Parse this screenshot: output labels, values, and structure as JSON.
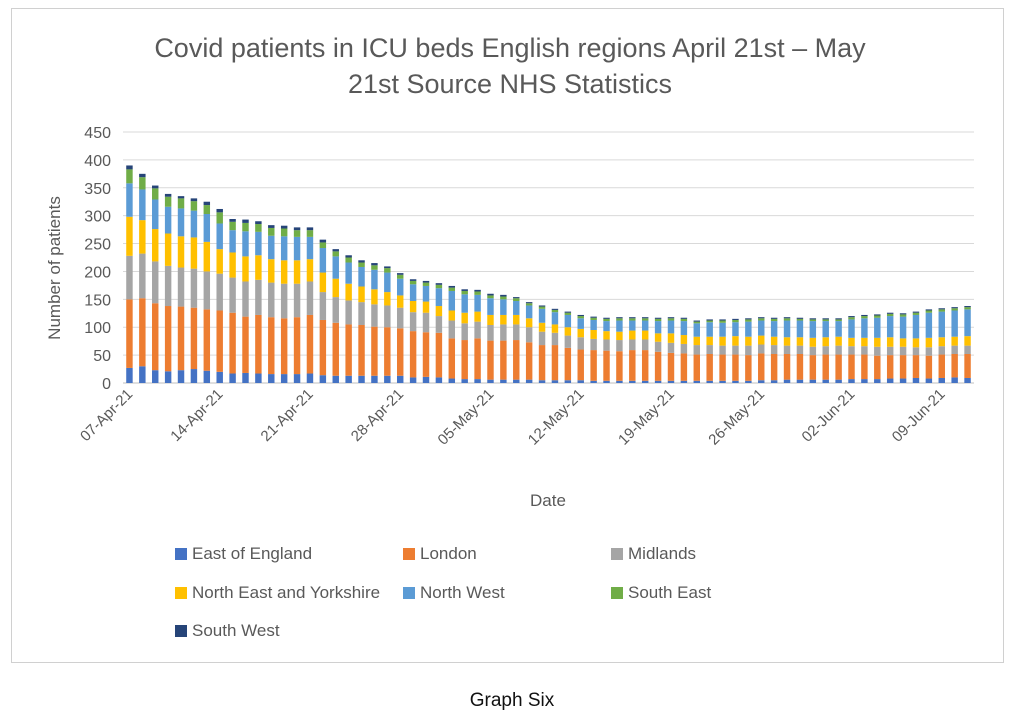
{
  "chart_data": {
    "type": "bar",
    "stacked": true,
    "title_lines": [
      "Covid patients in ICU beds English regions April 21st – May",
      "21st Source NHS Statistics"
    ],
    "xlabel": "Date",
    "ylabel": "Number of patients",
    "ylim": [
      0,
      450
    ],
    "yticks": [
      0,
      50,
      100,
      150,
      200,
      250,
      300,
      350,
      400,
      450
    ],
    "grid": true,
    "legend_position": "bottom",
    "start_date": "2021-04-07",
    "xtick_labels": [
      "07-Apr-21",
      "14-Apr-21",
      "21-Apr-21",
      "28-Apr-21",
      "05-May-21",
      "12-May-21",
      "19-May-21",
      "26-May-21",
      "02-Jun-21",
      "09-Jun-21"
    ],
    "series": [
      {
        "name": "East of England",
        "color": "#4472c4",
        "values": [
          27,
          30,
          23,
          21,
          23,
          25,
          22,
          20,
          17,
          18,
          17,
          16,
          16,
          16,
          17,
          14,
          13,
          13,
          13,
          13,
          13,
          13,
          10,
          11,
          10,
          8,
          7,
          7,
          6,
          6,
          6,
          6,
          5,
          5,
          5,
          5,
          4,
          4,
          4,
          4,
          4,
          4,
          4,
          4,
          4,
          4,
          4,
          4,
          4,
          5,
          5,
          6,
          6,
          6,
          6,
          6,
          7,
          7,
          7,
          8,
          8,
          9,
          8,
          9,
          10,
          9
        ]
      },
      {
        "name": "London",
        "color": "#ed7d31",
        "values": [
          123,
          122,
          120,
          117,
          114,
          110,
          110,
          110,
          109,
          101,
          105,
          102,
          100,
          102,
          105,
          99,
          95,
          92,
          91,
          88,
          87,
          85,
          83,
          80,
          80,
          72,
          70,
          73,
          70,
          70,
          71,
          67,
          63,
          63,
          58,
          55,
          55,
          54,
          53,
          55,
          55,
          52,
          50,
          49,
          47,
          48,
          47,
          47,
          46,
          48,
          47,
          46,
          46,
          44,
          45,
          45,
          44,
          44,
          42,
          42,
          42,
          41,
          41,
          42,
          42,
          43
        ]
      },
      {
        "name": "Midlands",
        "color": "#a5a5a5",
        "values": [
          78,
          80,
          75,
          72,
          70,
          70,
          68,
          66,
          63,
          63,
          63,
          62,
          62,
          60,
          60,
          50,
          46,
          43,
          41,
          40,
          39,
          37,
          34,
          35,
          30,
          32,
          30,
          30,
          28,
          29,
          28,
          27,
          24,
          22,
          22,
          22,
          20,
          20,
          20,
          19,
          19,
          18,
          18,
          17,
          17,
          16,
          16,
          16,
          17,
          16,
          16,
          15,
          15,
          15,
          15,
          16,
          15,
          15,
          16,
          15,
          15,
          14,
          15,
          15,
          15,
          15
        ]
      },
      {
        "name": "North East and Yorkshire",
        "color": "#ffc000",
        "values": [
          70,
          60,
          58,
          58,
          56,
          56,
          53,
          44,
          45,
          45,
          44,
          42,
          42,
          42,
          40,
          35,
          33,
          30,
          28,
          27,
          24,
          22,
          20,
          20,
          18,
          18,
          19,
          18,
          18,
          17,
          17,
          16,
          16,
          15,
          15,
          15,
          16,
          15,
          15,
          16,
          16,
          15,
          17,
          16,
          15,
          15,
          16,
          17,
          16,
          16,
          15,
          15,
          15,
          16,
          16,
          16,
          15,
          15,
          16,
          17,
          15,
          16,
          17,
          16,
          16,
          17
        ]
      },
      {
        "name": "North West",
        "color": "#5b9bd5",
        "values": [
          60,
          55,
          53,
          48,
          50,
          48,
          50,
          46,
          40,
          45,
          42,
          42,
          43,
          42,
          40,
          44,
          40,
          38,
          35,
          35,
          35,
          30,
          30,
          28,
          32,
          35,
          33,
          30,
          30,
          28,
          25,
          23,
          25,
          22,
          22,
          19,
          18,
          18,
          20,
          18,
          18,
          22,
          23,
          25,
          24,
          26,
          25,
          25,
          27,
          27,
          28,
          30,
          30,
          30,
          29,
          28,
          33,
          35,
          36,
          38,
          39,
          42,
          45,
          46,
          47,
          48
        ]
      },
      {
        "name": "South East",
        "color": "#70ad47",
        "values": [
          25,
          22,
          20,
          18,
          18,
          17,
          16,
          20,
          15,
          15,
          14,
          14,
          14,
          12,
          12,
          10,
          9,
          9,
          8,
          8,
          8,
          7,
          6,
          6,
          6,
          6,
          6,
          6,
          5,
          5,
          5,
          4,
          4,
          4,
          4,
          4,
          4,
          4,
          4,
          4,
          4,
          4,
          4,
          4,
          3,
          3,
          4,
          4,
          4,
          4,
          4,
          4,
          3,
          3,
          3,
          3,
          4,
          4,
          4,
          4,
          4,
          4,
          4,
          4,
          4,
          4
        ]
      },
      {
        "name": "South West",
        "color": "#264478",
        "values": [
          7,
          6,
          5,
          5,
          4,
          5,
          6,
          6,
          5,
          6,
          5,
          5,
          5,
          5,
          5,
          5,
          4,
          4,
          4,
          4,
          3,
          3,
          3,
          3,
          3,
          3,
          3,
          3,
          3,
          3,
          2,
          2,
          2,
          2,
          2,
          2,
          2,
          2,
          2,
          2,
          2,
          2,
          2,
          2,
          2,
          2,
          2,
          2,
          2,
          2,
          2,
          2,
          2,
          2,
          2,
          2,
          2,
          2,
          2,
          2,
          2,
          2,
          2,
          2,
          2,
          2
        ]
      }
    ]
  },
  "caption": "Graph Six"
}
